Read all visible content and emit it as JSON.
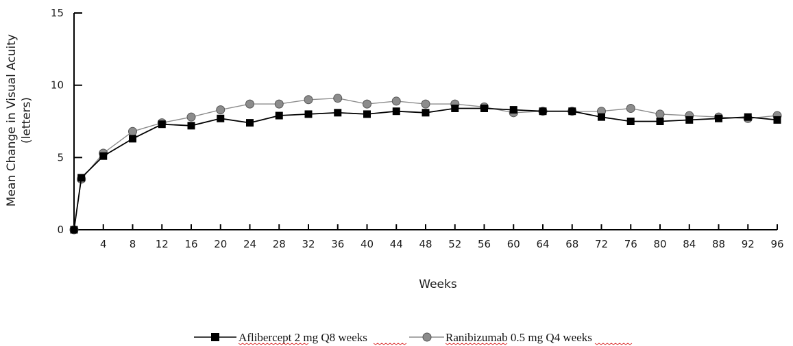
{
  "chart_data": {
    "type": "line",
    "xlabel": "Weeks",
    "ylabel_line1": "Mean Change in Visual Acuity",
    "ylabel_line2": "(letters)",
    "xlim": [
      0,
      96
    ],
    "ylim": [
      0,
      15
    ],
    "x_ticks": [
      4,
      8,
      12,
      16,
      20,
      24,
      28,
      32,
      36,
      40,
      44,
      48,
      52,
      56,
      60,
      64,
      68,
      72,
      76,
      80,
      84,
      88,
      92,
      96
    ],
    "y_ticks": [
      0,
      5,
      10,
      15
    ],
    "grid": false,
    "legend_position": "bottom-center",
    "series": [
      {
        "name": "Aflibercept 2 mg Q8 weeks",
        "marker": "square",
        "marker_color": "#000000",
        "line_color": "#000000",
        "x": [
          0,
          1,
          4,
          8,
          12,
          16,
          20,
          24,
          28,
          32,
          36,
          40,
          44,
          48,
          52,
          56,
          60,
          64,
          68,
          72,
          76,
          80,
          84,
          88,
          92,
          96
        ],
        "y": [
          0,
          3.6,
          5.1,
          6.3,
          7.3,
          7.2,
          7.7,
          7.4,
          7.9,
          8.0,
          8.1,
          8.0,
          8.2,
          8.1,
          8.4,
          8.4,
          8.3,
          8.2,
          8.2,
          7.8,
          7.5,
          7.5,
          7.6,
          7.7,
          7.8,
          7.6
        ]
      },
      {
        "name": "Ranibizumab 0.5 mg Q4 weeks",
        "marker": "circle",
        "marker_color": "#8c8c8c",
        "line_color": "#8c8c8c",
        "x": [
          0,
          1,
          4,
          8,
          12,
          16,
          20,
          24,
          28,
          32,
          36,
          40,
          44,
          48,
          52,
          56,
          60,
          64,
          68,
          72,
          76,
          80,
          84,
          88,
          92,
          96
        ],
        "y": [
          0,
          3.5,
          5.3,
          6.8,
          7.4,
          7.8,
          8.3,
          8.7,
          8.7,
          9.0,
          9.1,
          8.7,
          8.9,
          8.7,
          8.7,
          8.5,
          8.1,
          8.2,
          8.2,
          8.2,
          8.4,
          8.0,
          7.9,
          7.8,
          7.7,
          7.9
        ]
      }
    ]
  }
}
